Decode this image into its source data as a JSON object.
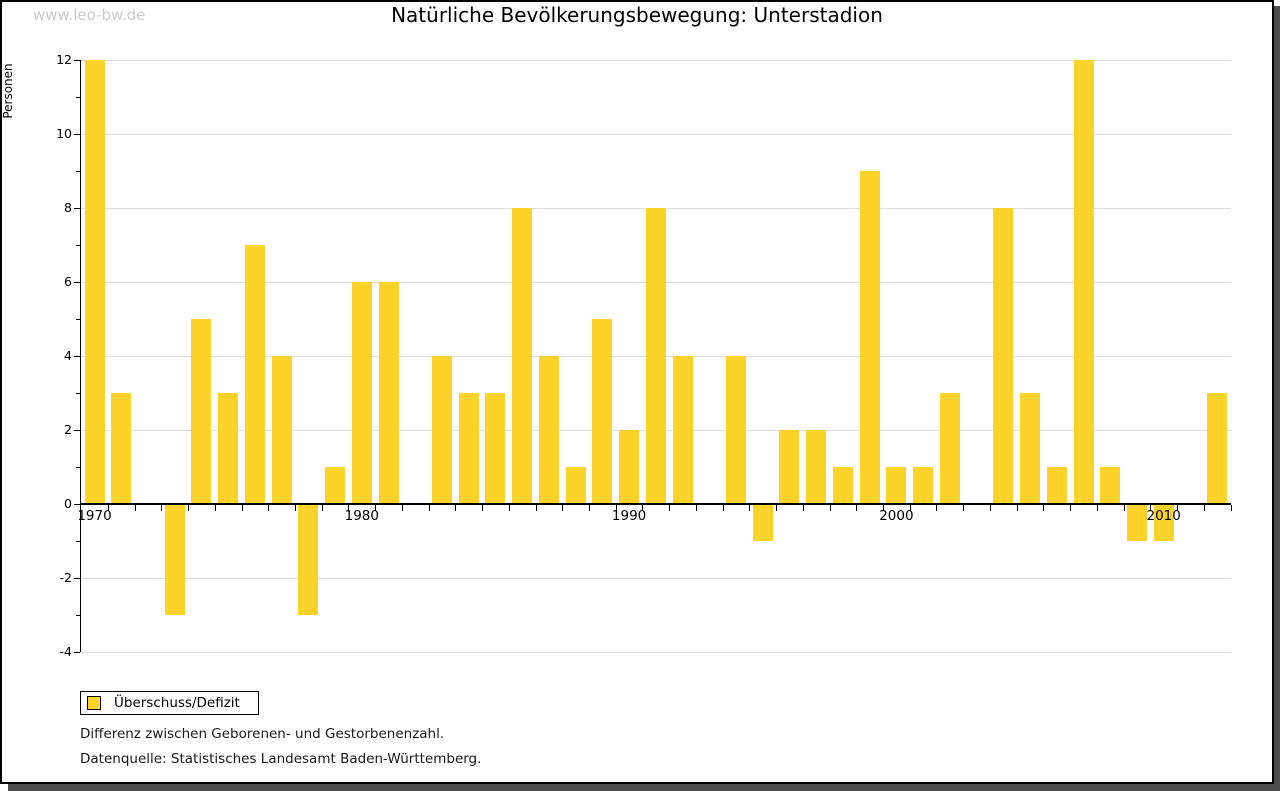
{
  "watermark": "www.leo-bw.de",
  "title": "Natürliche Bevölkerungsbewegung: Unterstadion",
  "y_axis": {
    "label": "Personen",
    "ticks": [
      12,
      10,
      8,
      6,
      4,
      2,
      0,
      -2,
      -4
    ],
    "minor_ticks": [
      11,
      9,
      7,
      5,
      3,
      1,
      -1,
      -3
    ]
  },
  "x_axis": {
    "decade_labels": [
      "1970",
      "1980",
      "1990",
      "2000",
      "2010"
    ]
  },
  "legend": {
    "label": "Überschuss/Defizit"
  },
  "footnotes": [
    "Differenz zwischen Geborenen- und Gestorbenenzahl.",
    "Datenquelle: Statistisches Landesamt Baden-Württemberg."
  ],
  "colors": {
    "bar": "#fcd22b",
    "grid": "#dddddd",
    "axis": "#000000",
    "watermark": "#cbcbcb",
    "shadow": "#4d4d4d"
  },
  "chart_data": {
    "type": "bar",
    "title": "Natürliche Bevölkerungsbewegung: Unterstadion",
    "xlabel": "",
    "ylabel": "Personen",
    "ylim": [
      -4,
      12
    ],
    "grid": true,
    "legend_position": "bottom-left",
    "series_name": "Überschuss/Defizit",
    "x": [
      1970,
      1971,
      1972,
      1973,
      1974,
      1975,
      1976,
      1977,
      1978,
      1979,
      1980,
      1981,
      1982,
      1983,
      1984,
      1985,
      1986,
      1987,
      1988,
      1989,
      1990,
      1991,
      1992,
      1993,
      1994,
      1995,
      1996,
      1997,
      1998,
      1999,
      2000,
      2001,
      2002,
      2003,
      2004,
      2005,
      2006,
      2007,
      2008,
      2009,
      2010,
      2011,
      2012
    ],
    "values": [
      12,
      3,
      0,
      -3,
      5,
      3,
      7,
      4,
      -3,
      1,
      6,
      6,
      0,
      4,
      3,
      3,
      8,
      4,
      1,
      5,
      2,
      8,
      4,
      0,
      4,
      -1,
      2,
      2,
      1,
      9,
      1,
      1,
      3,
      0,
      8,
      3,
      1,
      12,
      1,
      -1,
      -1,
      0,
      3
    ]
  }
}
